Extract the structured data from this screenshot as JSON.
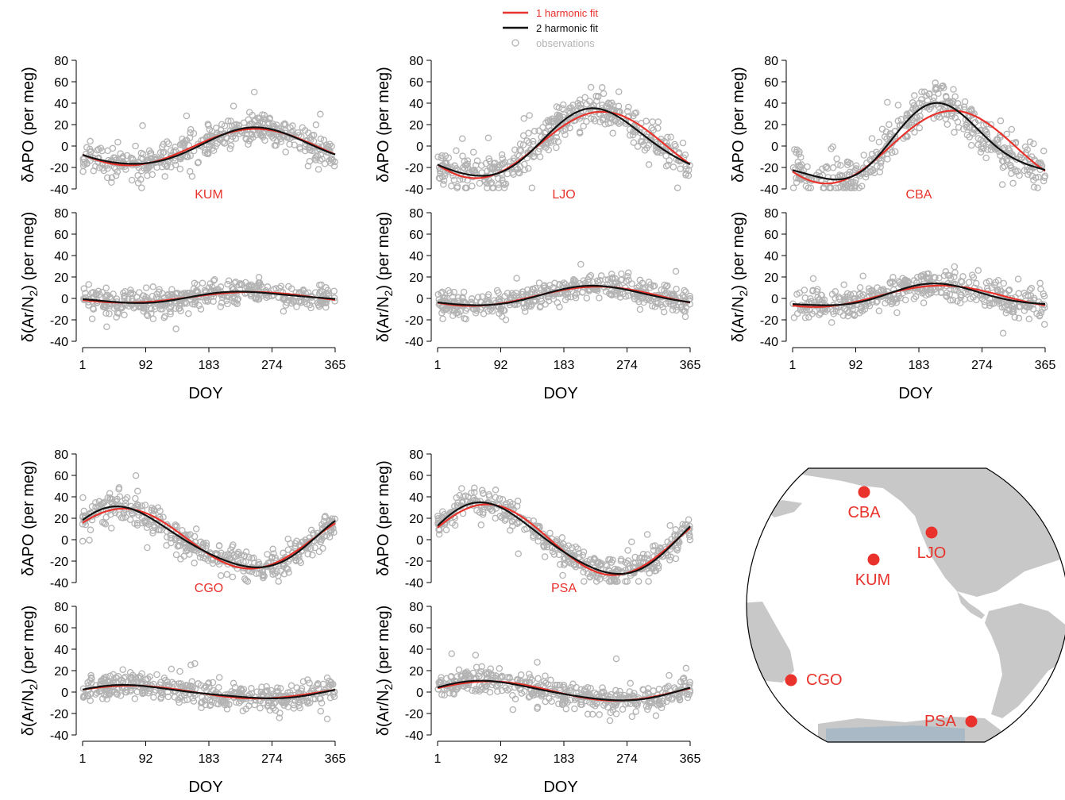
{
  "colors": {
    "one_harmonic": "#e8322b",
    "two_harmonic": "#111111",
    "observations": "#b3b3b3",
    "site": "#e8322b",
    "land": "#c8c8c8",
    "ocean": "#ffffff",
    "ice": "#a9b9c6"
  },
  "legend": {
    "items": [
      {
        "label": "1 harmonic fit",
        "kind": "line",
        "color": "#e8322b"
      },
      {
        "label": "2 harmonic fit",
        "kind": "line",
        "color": "#111111"
      },
      {
        "label": "observations",
        "kind": "point",
        "color": "#b3b3b3"
      }
    ]
  },
  "axes": {
    "xlabel": "DOY",
    "xticks": [
      1,
      92,
      183,
      274,
      365
    ],
    "xlim": [
      1,
      365
    ],
    "apo_ylabel": "δAPO (per meg)",
    "ar_ylabel_prefix": "δ(Ar/N",
    "ar_ylabel_sub": "2",
    "ar_ylabel_suffix": ") (per meg)",
    "yticks": [
      -40,
      -20,
      0,
      20,
      40,
      60,
      80
    ],
    "ylim": [
      -40,
      80
    ]
  },
  "chart_data": [
    {
      "type": "scatter",
      "site": "KUM",
      "variable": "δAPO",
      "ylim": [
        -40,
        80
      ],
      "one_harmonic": {
        "mean": -1,
        "amp1": 17,
        "peak_doy": 250
      },
      "two_harmonic": {
        "mean": -1,
        "amp1": 17,
        "peak_doy": 252,
        "amp2": 1.5,
        "peak2_doy": 60
      },
      "obs_spread": 7
    },
    {
      "type": "scatter",
      "site": "KUM",
      "variable": "δ(Ar/N2)",
      "ylim": [
        -40,
        80
      ],
      "one_harmonic": {
        "mean": 1,
        "amp1": 5,
        "peak_doy": 245
      },
      "two_harmonic": {
        "mean": 1,
        "amp1": 5,
        "peak_doy": 245,
        "amp2": 1,
        "peak2_doy": 200
      },
      "obs_spread": 6
    },
    {
      "type": "scatter",
      "site": "LJO",
      "variable": "δAPO",
      "ylim": [
        -40,
        80
      ],
      "one_harmonic": {
        "mean": 1,
        "amp1": 31,
        "peak_doy": 238
      },
      "two_harmonic": {
        "mean": 1,
        "amp1": 31,
        "peak_doy": 232,
        "amp2": 4,
        "peak2_doy": 210
      },
      "obs_spread": 9
    },
    {
      "type": "scatter",
      "site": "LJO",
      "variable": "δ(Ar/N2)",
      "ylim": [
        -40,
        80
      ],
      "one_harmonic": {
        "mean": 2,
        "amp1": 9,
        "peak_doy": 232
      },
      "two_harmonic": {
        "mean": 2,
        "amp1": 9,
        "peak_doy": 230,
        "amp2": 1,
        "peak2_doy": 210
      },
      "obs_spread": 6
    },
    {
      "type": "scatter",
      "site": "CBA",
      "variable": "δAPO",
      "ylim": [
        -40,
        80
      ],
      "one_harmonic": {
        "mean": -1,
        "amp1": 34,
        "peak_doy": 232
      },
      "two_harmonic": {
        "mean": -1,
        "amp1": 34,
        "peak_doy": 218,
        "amp2": 8,
        "peak2_doy": 200
      },
      "obs_spread": 10
    },
    {
      "type": "scatter",
      "site": "CBA",
      "variable": "δ(Ar/N2)",
      "ylim": [
        -40,
        80
      ],
      "one_harmonic": {
        "mean": 2,
        "amp1": 10,
        "peak_doy": 215
      },
      "two_harmonic": {
        "mean": 2,
        "amp1": 10,
        "peak_doy": 210,
        "amp2": 2,
        "peak2_doy": 200
      },
      "obs_spread": 7
    },
    {
      "type": "scatter",
      "site": "CGO",
      "variable": "δAPO",
      "ylim": [
        -40,
        80
      ],
      "one_harmonic": {
        "mean": 1,
        "amp1": 28,
        "peak_doy": 60
      },
      "two_harmonic": {
        "mean": 1,
        "amp1": 28,
        "peak_doy": 58,
        "amp2": 3,
        "peak2_doy": 30
      },
      "obs_spread": 7
    },
    {
      "type": "scatter",
      "site": "CGO",
      "variable": "δ(Ar/N2)",
      "ylim": [
        -40,
        80
      ],
      "one_harmonic": {
        "mean": 0,
        "amp1": 6,
        "peak_doy": 70
      },
      "two_harmonic": {
        "mean": 0,
        "amp1": 6,
        "peak_doy": 72,
        "amp2": 1,
        "peak2_doy": 40
      },
      "obs_spread": 6
    },
    {
      "type": "scatter",
      "site": "PSA",
      "variable": "δAPO",
      "ylim": [
        -40,
        80
      ],
      "one_harmonic": {
        "mean": 0,
        "amp1": 33,
        "peak_doy": 72
      },
      "two_harmonic": {
        "mean": 0,
        "amp1": 33,
        "peak_doy": 70,
        "amp2": 3,
        "peak2_doy": 40
      },
      "obs_spread": 7
    },
    {
      "type": "scatter",
      "site": "PSA",
      "variable": "δ(Ar/N2)",
      "ylim": [
        -40,
        80
      ],
      "one_harmonic": {
        "mean": 1,
        "amp1": 9,
        "peak_doy": 75
      },
      "two_harmonic": {
        "mean": 1,
        "amp1": 9,
        "peak_doy": 72,
        "amp2": 1,
        "peak2_doy": 40
      },
      "obs_spread": 6
    }
  ],
  "map": {
    "sites": [
      {
        "name": "CBA",
        "label_pos": "below"
      },
      {
        "name": "LJO",
        "label_pos": "below"
      },
      {
        "name": "KUM",
        "label_pos": "below"
      },
      {
        "name": "CGO",
        "label_pos": "right"
      },
      {
        "name": "PSA",
        "label_pos": "left"
      }
    ]
  }
}
